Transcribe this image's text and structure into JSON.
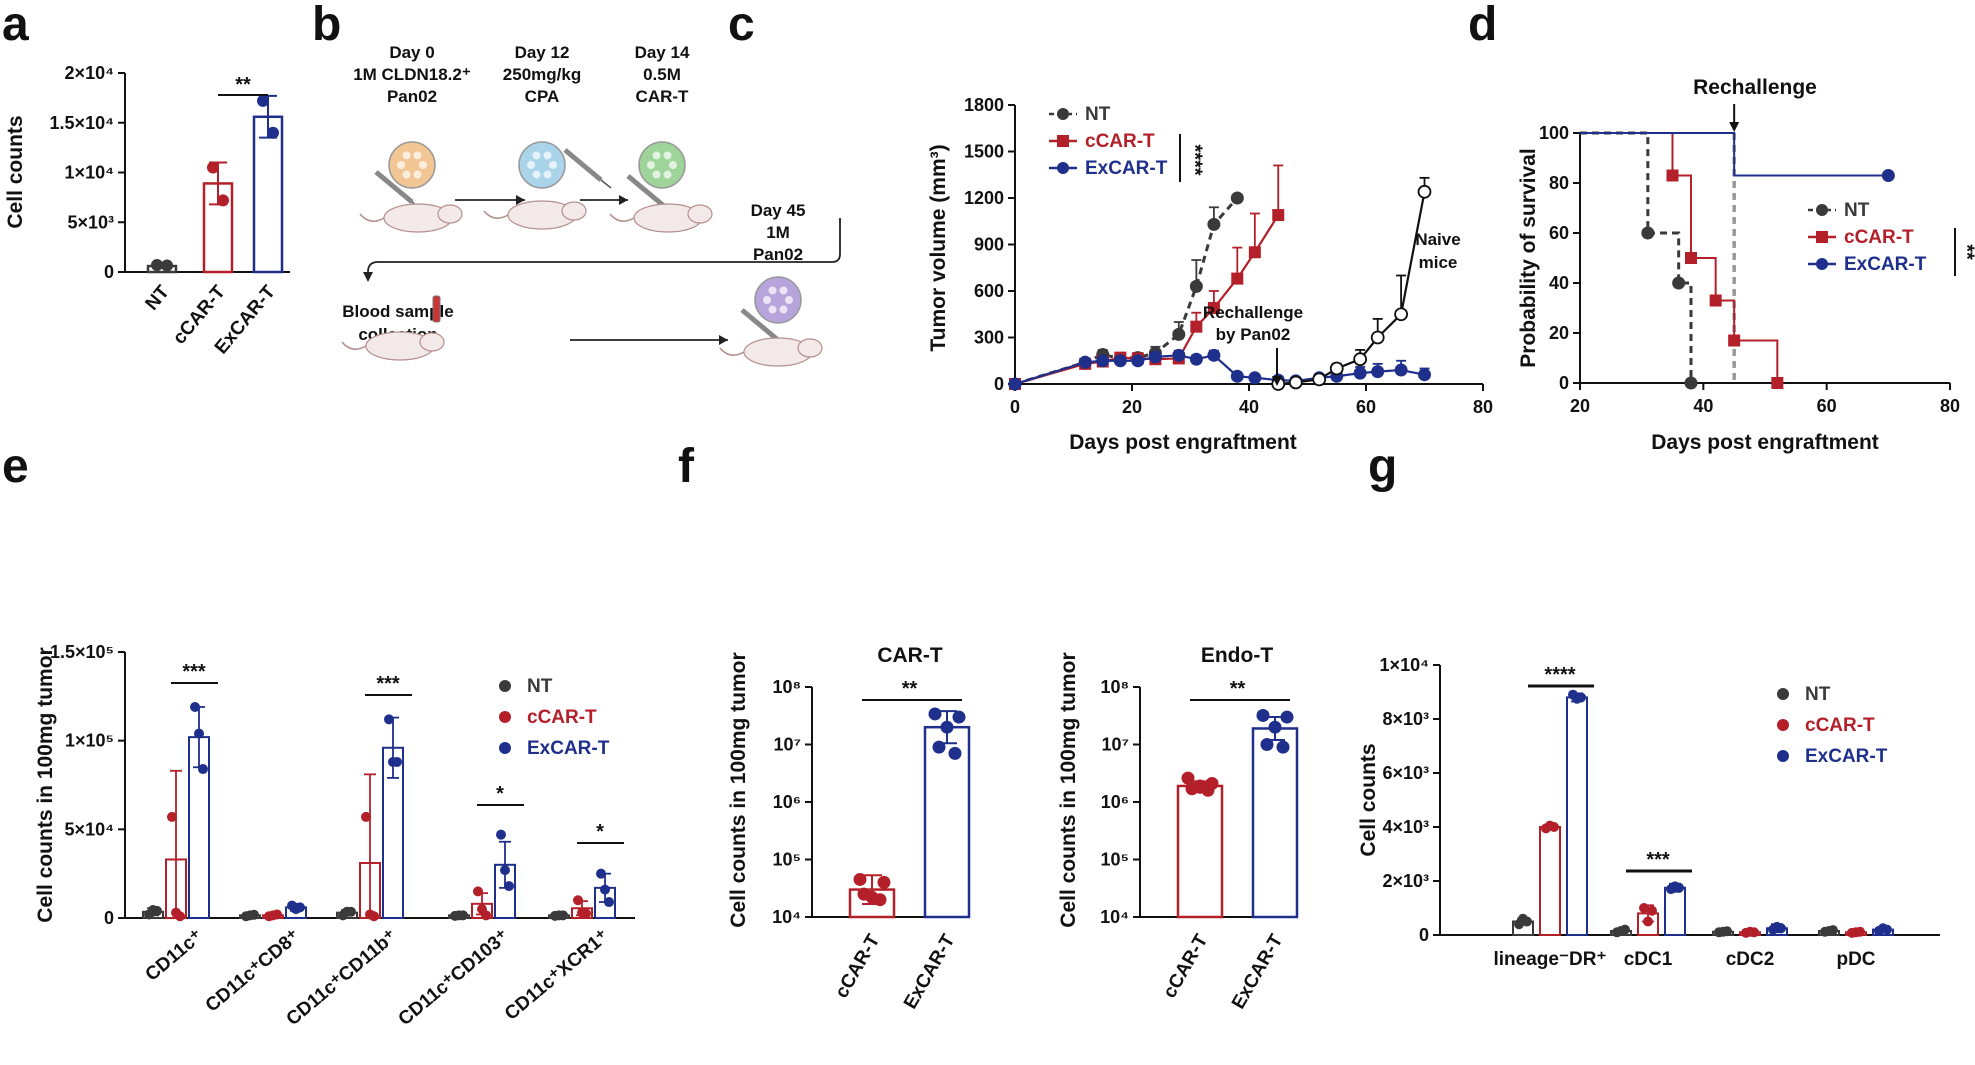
{
  "colors": {
    "nt": "#3a3a3a",
    "ccar": "#b3202a",
    "excar": "#1f2f8c",
    "axis": "#111111"
  },
  "legend_labels": [
    "NT",
    "cCAR-T",
    "ExCAR-T"
  ],
  "chart_data": [
    {
      "id": "a",
      "panel_label": "a",
      "type": "bar",
      "title": "",
      "ylabel": "Cell counts",
      "ylim": [
        0,
        20000
      ],
      "ytick_labels": [
        "0",
        "5×10³",
        "1×10⁴",
        "1.5×10⁴",
        "2×10⁴"
      ],
      "categories": [
        "NT",
        "cCAR-T",
        "ExCAR-T"
      ],
      "means": [
        600,
        8900,
        15600
      ],
      "errors": [
        150,
        2100,
        2100
      ],
      "points": [
        [
          700,
          650
        ],
        [
          10500,
          7200
        ],
        [
          17200,
          14000
        ]
      ],
      "significance": [
        {
          "label": "**",
          "pair": [
            1,
            2
          ]
        }
      ]
    },
    {
      "id": "b",
      "panel_label": "b",
      "type": "table",
      "steps": [
        "Day 0",
        "1M CLDN18.2⁺",
        "Pan02",
        "Day 12",
        "250mg/kg",
        "CPA",
        "Day 14",
        "0.5M",
        "CAR-T",
        "Blood sample",
        "collection",
        "Day 45",
        "1M",
        "Pan02"
      ]
    },
    {
      "id": "c",
      "panel_label": "c",
      "type": "line",
      "xlabel": "Days post engraftment",
      "ylabel": "Tumor  volume (mm³)",
      "xlim": [
        0,
        80
      ],
      "ylim": [
        0,
        1800
      ],
      "xticks": [
        "0",
        "20",
        "40",
        "60",
        "80"
      ],
      "yticks": [
        "0",
        "300",
        "600",
        "900",
        "1200",
        "1500",
        "1800"
      ],
      "series": [
        {
          "name": "NT",
          "x": [
            0,
            12,
            15,
            18,
            21,
            24,
            28,
            31,
            34,
            38
          ],
          "y": [
            0,
            140,
            190,
            165,
            170,
            200,
            320,
            630,
            1030,
            1200
          ],
          "err": [
            0,
            20,
            30,
            25,
            30,
            40,
            80,
            170,
            110,
            0
          ]
        },
        {
          "name": "cCAR-T",
          "x": [
            0,
            12,
            15,
            18,
            21,
            24,
            28,
            31,
            34,
            38,
            41,
            45,
            48
          ],
          "y": [
            0,
            130,
            145,
            170,
            165,
            160,
            165,
            370,
            490,
            680,
            850,
            1090,
            0
          ],
          "err": [
            0,
            20,
            25,
            30,
            30,
            30,
            40,
            90,
            110,
            200,
            250,
            320,
            0
          ]
        },
        {
          "name": "ExCAR-T",
          "x": [
            0,
            12,
            15,
            18,
            21,
            24,
            28,
            31,
            34,
            38,
            41,
            45,
            48,
            52,
            55,
            59,
            62,
            66,
            70
          ],
          "y": [
            0,
            140,
            150,
            150,
            150,
            175,
            185,
            160,
            185,
            50,
            40,
            25,
            20,
            40,
            50,
            70,
            80,
            90,
            60
          ],
          "err": [
            0,
            15,
            20,
            20,
            20,
            25,
            30,
            25,
            30,
            15,
            15,
            10,
            10,
            20,
            30,
            40,
            50,
            60,
            40
          ]
        },
        {
          "name": "Naive mice",
          "x": [
            45,
            48,
            52,
            55,
            59,
            62,
            66,
            70
          ],
          "y": [
            0,
            10,
            30,
            100,
            160,
            300,
            450,
            1240
          ],
          "err": [
            0,
            5,
            10,
            30,
            60,
            120,
            250,
            90
          ]
        }
      ],
      "annotations": [
        "Rechallenge",
        "by Pan02",
        "Naive",
        "mice"
      ],
      "significance": [
        {
          "label": "****"
        }
      ]
    },
    {
      "id": "d",
      "panel_label": "d",
      "type": "line",
      "title": "Rechallenge",
      "xlabel": "Days post engraftment",
      "ylabel": "Probability of survival",
      "xlim": [
        20,
        80
      ],
      "ylim": [
        0,
        100
      ],
      "xticks": [
        "20",
        "40",
        "60",
        "80"
      ],
      "yticks": [
        "0",
        "20",
        "40",
        "60",
        "80",
        "100"
      ],
      "series": [
        {
          "name": "NT",
          "x": [
            20,
            31,
            31,
            36,
            36,
            38,
            38
          ],
          "y": [
            100,
            100,
            60,
            60,
            40,
            40,
            0
          ],
          "markers": [
            [
              31,
              60
            ],
            [
              36,
              40
            ],
            [
              38,
              0
            ]
          ]
        },
        {
          "name": "cCAR-T",
          "x": [
            20,
            35,
            35,
            38,
            38,
            42,
            42,
            45,
            45,
            52,
            52
          ],
          "y": [
            100,
            100,
            83,
            83,
            50,
            50,
            33,
            33,
            17,
            17,
            0
          ],
          "markers": [
            [
              35,
              83
            ],
            [
              38,
              50
            ],
            [
              42,
              33
            ],
            [
              45,
              17
            ],
            [
              52,
              0
            ]
          ]
        },
        {
          "name": "ExCAR-T",
          "x": [
            20,
            45,
            45,
            70
          ],
          "y": [
            100,
            100,
            83,
            83
          ],
          "markers": [
            [
              70,
              83
            ]
          ]
        }
      ],
      "rechallenge_day": 45,
      "significance": [
        {
          "label": "**"
        }
      ]
    },
    {
      "id": "e",
      "panel_label": "e",
      "type": "bar",
      "ylabel": "Cell  counts in 100mg tumor",
      "ylim": [
        0,
        150000
      ],
      "ytick_labels": [
        "0",
        "5×10⁴",
        "1×10⁵",
        "1.5×10⁵"
      ],
      "categories": [
        "CD11c⁺",
        "CD11c⁺CD8⁺",
        "CD11c⁺CD11b⁺",
        "CD11c⁺CD103⁺",
        "CD11c⁺XCR1⁺"
      ],
      "series": [
        {
          "name": "NT",
          "values": [
            3500,
            1500,
            3000,
            1500,
            1500
          ],
          "errors": [
            2000,
            500,
            1500,
            500,
            500
          ],
          "points": [
            [
              2000,
              4500,
              4000
            ],
            [
              1000,
              1500,
              1800
            ],
            [
              1500,
              3500,
              3500
            ],
            [
              1200,
              1500,
              1500
            ],
            [
              1200,
              1500,
              1500
            ]
          ]
        },
        {
          "name": "cCAR-T",
          "values": [
            33000,
            1500,
            31000,
            8000,
            5500
          ],
          "errors": [
            50000,
            500,
            50000,
            6000,
            4000
          ],
          "points": [
            [
              57000,
              3000,
              1000
            ],
            [
              1000,
              1500,
              2000
            ],
            [
              57000,
              2000,
              1000
            ],
            [
              15000,
              5000,
              1500
            ],
            [
              10000,
              3000,
              2500
            ]
          ]
        },
        {
          "name": "ExCAR-T",
          "values": [
            102000,
            6000,
            96000,
            30000,
            17000
          ],
          "errors": [
            17000,
            2000,
            17000,
            13000,
            8000
          ],
          "points": [
            [
              119000,
              104000,
              84000
            ],
            [
              7000,
              5000,
              6000
            ],
            [
              112000,
              88000,
              88000
            ],
            [
              47000,
              27000,
              18000
            ],
            [
              25000,
              16000,
              9000
            ]
          ]
        }
      ],
      "significance": [
        {
          "label": "***",
          "category": 0
        },
        {
          "label": "***",
          "category": 2
        },
        {
          "label": "*",
          "category": 3
        },
        {
          "label": "*",
          "category": 4
        }
      ]
    },
    {
      "id": "f1",
      "panel_label": "f",
      "type": "bar",
      "title": "CAR-T",
      "ylabel": "Cell  counts in 100mg tumor",
      "yscale": "log",
      "ylim": [
        10000,
        100000000
      ],
      "ytick_labels": [
        "10⁴",
        "10⁵",
        "10⁶",
        "10⁷",
        "10⁸"
      ],
      "categories": [
        "cCAR-T",
        "ExCAR-T"
      ],
      "means": [
        30000,
        20000000
      ],
      "errors_log": [
        0.25,
        0.28
      ],
      "points": [
        [
          45000,
          40000,
          22000,
          25000,
          20000
        ],
        [
          34000000,
          30000000,
          20000000,
          9000000,
          7000000
        ]
      ],
      "significance": [
        {
          "label": "**",
          "pair": [
            0,
            1
          ]
        }
      ]
    },
    {
      "id": "f2",
      "panel_label": "",
      "type": "bar",
      "title": "Endo-T",
      "ylabel": "Cell  counts in 100mg tumor",
      "yscale": "log",
      "ylim": [
        10000,
        100000000
      ],
      "ytick_labels": [
        "10⁴",
        "10⁵",
        "10⁶",
        "10⁷",
        "10⁸"
      ],
      "categories": [
        "cCAR-T",
        "ExCAR-T"
      ],
      "means": [
        1900000,
        19000000
      ],
      "errors_log": [
        0.08,
        0.2
      ],
      "points": [
        [
          2600000,
          2100000,
          1800000,
          1700000,
          1600000,
          1900000
        ],
        [
          32000000,
          30000000,
          20000000,
          10000000,
          9000000
        ]
      ],
      "significance": [
        {
          "label": "**",
          "pair": [
            0,
            1
          ]
        }
      ]
    },
    {
      "id": "g",
      "panel_label": "g",
      "type": "bar",
      "ylabel": "Cell counts",
      "ylim": [
        0,
        10000
      ],
      "ytick_labels": [
        "0",
        "2×10³",
        "4×10³",
        "6×10³",
        "8×10³",
        "1×10⁴"
      ],
      "categories": [
        "lineage⁻DR⁺",
        "cDC1",
        "cDC2",
        "pDC"
      ],
      "series": [
        {
          "name": "NT",
          "values": [
            500,
            150,
            120,
            150
          ],
          "errors": [
            100,
            40,
            30,
            40
          ],
          "points": [
            [
              400,
              600,
              500
            ],
            [
              100,
              150,
              200
            ],
            [
              100,
              120,
              140
            ],
            [
              120,
              150,
              180
            ]
          ]
        },
        {
          "name": "cCAR-T",
          "values": [
            4000,
            800,
            100,
            100
          ],
          "errors": [
            50,
            300,
            30,
            30
          ],
          "points": [
            [
              3950,
              4050,
              4000
            ],
            [
              1000,
              500,
              900
            ],
            [
              80,
              120,
              100
            ],
            [
              80,
              100,
              120
            ]
          ]
        },
        {
          "name": "ExCAR-T",
          "values": [
            8800,
            1750,
            250,
            200
          ],
          "errors": [
            150,
            150,
            150,
            100
          ],
          "points": [
            [
              8900,
              8750,
              8800
            ],
            [
              1700,
              1800,
              1750
            ],
            [
              200,
              300,
              250
            ],
            [
              150,
              250,
              200
            ]
          ]
        }
      ],
      "significance": [
        {
          "label": "****",
          "category": 0
        },
        {
          "label": "***",
          "category": 1
        }
      ]
    }
  ]
}
